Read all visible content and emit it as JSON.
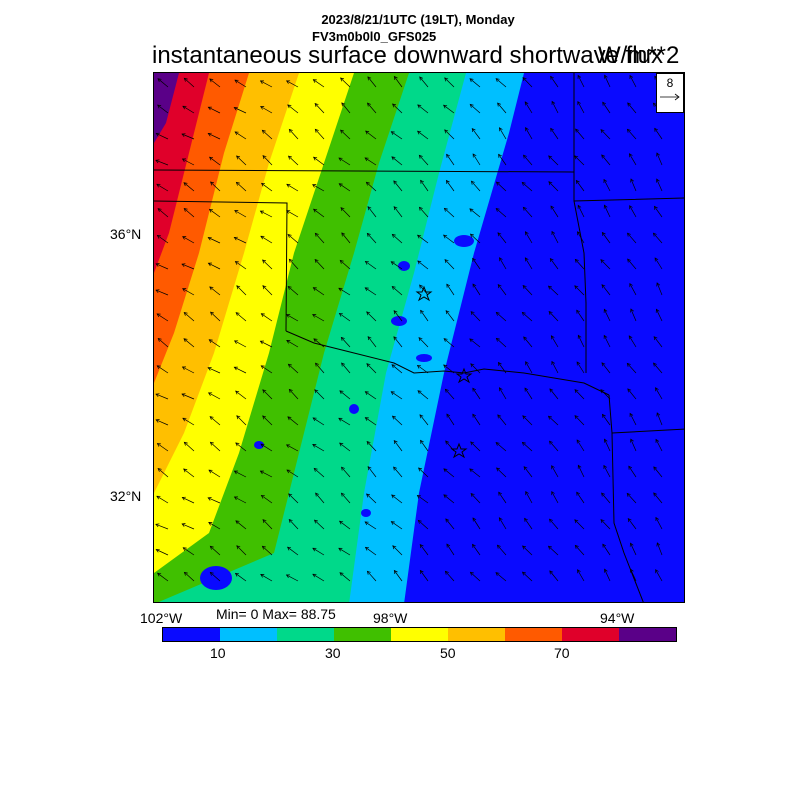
{
  "header": {
    "line1": "2023/8/21/1UTC (19LT), Monday",
    "line2": "FV3m0b0l0_GFS025",
    "title": "instantaneous surface downward shortwave flux",
    "units": "W/m**2"
  },
  "axes": {
    "lat_labels": [
      "36°N",
      "32°N"
    ],
    "lon_labels": [
      "102°W",
      "98°W",
      "94°W"
    ]
  },
  "stats": {
    "text": "Min= 0 Max= 88.75"
  },
  "reference_vector": {
    "label": "8"
  },
  "colorbar": {
    "colors": [
      "#0a0aff",
      "#00bfff",
      "#00d98a",
      "#40c000",
      "#ffff00",
      "#ffbf00",
      "#ff5a00",
      "#e0002a",
      "#5a0088"
    ],
    "labels": [
      "10",
      "30",
      "50",
      "70"
    ]
  },
  "legend_icons": {
    "station": "star-icon"
  }
}
